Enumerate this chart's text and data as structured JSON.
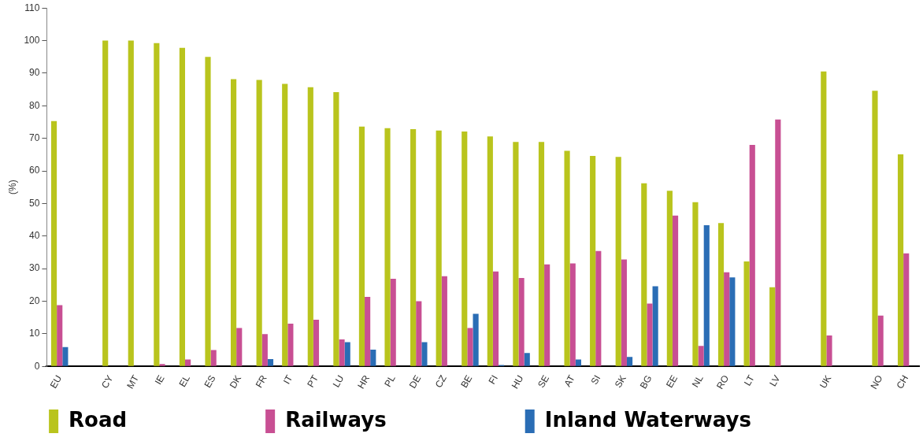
{
  "chart_data": {
    "type": "bar",
    "ylabel": "(%)",
    "categories": [
      "EU",
      null,
      "CY",
      "MT",
      "IE",
      "EL",
      "ES",
      "DK",
      "FR",
      "IT",
      "PT",
      "LU",
      "HR",
      "PL",
      "DE",
      "CZ",
      "BE",
      "FI",
      "HU",
      "SE",
      "AT",
      "SI",
      "SK",
      "BG",
      "EE",
      "NL",
      "RO",
      "LT",
      "LV",
      null,
      "UK",
      null,
      "NO",
      "CH"
    ],
    "series": [
      {
        "name": "Road",
        "color": "#b9c41d",
        "values": [
          75.3,
          null,
          100,
          100,
          99.2,
          97.8,
          95,
          88.2,
          87.9,
          86.7,
          85.7,
          84.2,
          73.6,
          73.1,
          72.8,
          72.4,
          72.1,
          70.6,
          68.9,
          68.9,
          66.2,
          64.6,
          64.3,
          56.2,
          53.9,
          50.4,
          44,
          32.2,
          24.3,
          null,
          90.5,
          null,
          84.6,
          65.1
        ]
      },
      {
        "name": "Railways",
        "color": "#c84f93",
        "values": [
          18.8,
          null,
          null,
          null,
          0.7,
          2.1,
          5,
          11.8,
          9.9,
          13.1,
          14.3,
          8.3,
          21.3,
          26.9,
          20,
          27.7,
          11.8,
          29.1,
          27.1,
          31.3,
          31.6,
          35.4,
          32.8,
          19.3,
          46.3,
          6.3,
          28.9,
          68,
          75.8,
          null,
          9.5,
          null,
          15.6,
          34.7
        ]
      },
      {
        "name": "Inland Waterways",
        "color": "#2a6db5",
        "values": [
          5.9,
          null,
          null,
          null,
          null,
          null,
          null,
          null,
          2.2,
          null,
          null,
          7.4,
          5.1,
          null,
          7.4,
          null,
          16.1,
          0.4,
          4.1,
          null,
          2.1,
          null,
          2.9,
          24.6,
          null,
          43.3,
          27.3,
          null,
          null,
          null,
          null,
          null,
          null,
          null
        ]
      }
    ],
    "ylim": [
      0,
      110
    ],
    "yticks": [
      0,
      10,
      20,
      30,
      40,
      50,
      60,
      70,
      80,
      90,
      100,
      110
    ],
    "grid": false,
    "legend": "bottom"
  }
}
